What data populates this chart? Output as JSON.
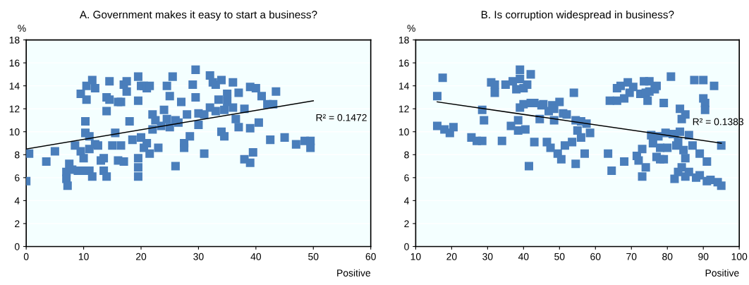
{
  "chart_data": [
    {
      "type": "scatter",
      "title": "A. Government makes it easy to start a business?",
      "xlabel": "Positive",
      "ylabel": "%",
      "marker": "square",
      "grid": "y",
      "xlim": [
        0,
        60
      ],
      "xticks": [
        0,
        10,
        20,
        30,
        40,
        50,
        60
      ],
      "ylim": [
        0,
        18
      ],
      "yticks": [
        0,
        2,
        4,
        6,
        8,
        10,
        12,
        14,
        16,
        18
      ],
      "annotations": [
        "R² = 0.1472"
      ],
      "series": [
        {
          "color": "#4a7ebb",
          "x": [
            0,
            0.5,
            3.5,
            5,
            7,
            7,
            7.2,
            7.5,
            8,
            8.5,
            9,
            9.5,
            9.5,
            10,
            10,
            10.3,
            10.3,
            10.5,
            10.5,
            11,
            11,
            11,
            11.5,
            11.5,
            12,
            12,
            12.5,
            13,
            13.5,
            13.5,
            14,
            14,
            14,
            14.5,
            14.5,
            15,
            15.5,
            16,
            16,
            16.5,
            16.5,
            17,
            17,
            17.5,
            17.5,
            18,
            18.5,
            19.5,
            19.5,
            19.5,
            19.5,
            19.5,
            20,
            20,
            20.5,
            20.5,
            21,
            21,
            21.5,
            21.5,
            22,
            22,
            22.5,
            23,
            23.5,
            24,
            24.5,
            24.5,
            25,
            25,
            25.5,
            26,
            26,
            26.5,
            27,
            27.5,
            27.5,
            28,
            28.5,
            29,
            29.5,
            29.5,
            30,
            30,
            31,
            31,
            32,
            32,
            32.5,
            33,
            33,
            33.5,
            34,
            34,
            34.5,
            34.5,
            35,
            35,
            36,
            36,
            36.5,
            37,
            37,
            38,
            38,
            39,
            39,
            39,
            39.5,
            40,
            40.5,
            41,
            42,
            42.5,
            43,
            43.5,
            45,
            47,
            48.5,
            49.5,
            49.5
          ],
          "values": [
            5.7,
            8.1,
            7.4,
            8.3,
            6.5,
            5.9,
            5.3,
            7.2,
            6.7,
            8.8,
            6.6,
            13.3,
            8.3,
            7.7,
            6.6,
            10.9,
            9.9,
            12.8,
            14,
            9.6,
            8.5,
            6.6,
            6.1,
            14.5,
            13.8,
            8.9,
            8.8,
            7.5,
            7.7,
            6.6,
            6.1,
            11.8,
            13,
            14.4,
            12.8,
            8.8,
            9.9,
            7.5,
            12.6,
            12.6,
            8.8,
            7.4,
            14.1,
            13.5,
            14.4,
            10.9,
            9.3,
            14.8,
            6.1,
            6.9,
            7.7,
            12.7,
            14,
            9.5,
            14,
            8.6,
            9,
            13.8,
            8.1,
            14,
            11.5,
            10.2,
            11,
            8.6,
            10.5,
            11.9,
            14,
            11.1,
            13.1,
            10.4,
            14.8,
            7,
            11,
            10.8,
            12.6,
            9,
            8.6,
            11.5,
            9.6,
            14.1,
            15.4,
            13,
            11.6,
            10.6,
            8.1,
            11.5,
            14.9,
            12.1,
            14.3,
            11.8,
            14.1,
            12.8,
            14.5,
            10,
            11.9,
            9.6,
            12.6,
            13.3,
            14.3,
            12.1,
            11.1,
            13.4,
            10.4,
            12,
            7.6,
            7.3,
            13.9,
            10.3,
            8.2,
            13.8,
            10.8,
            13.1,
            12.4,
            9.3,
            12.4,
            13.5,
            9.5,
            8.9,
            9.2,
            9.2,
            8.6
          ]
        },
        {
          "type": "line",
          "color": "#000000",
          "marker": "none",
          "x": [
            0,
            50
          ],
          "values": [
            8.5,
            12.7
          ]
        }
      ]
    },
    {
      "type": "scatter",
      "title": "B. Is corruption widespread in business?",
      "xlabel": "Positive",
      "ylabel": "%",
      "marker": "square",
      "grid": "y",
      "xlim": [
        10,
        100
      ],
      "xticks": [
        10,
        20,
        30,
        40,
        50,
        60,
        70,
        80,
        90,
        100
      ],
      "ylim": [
        0,
        18
      ],
      "yticks": [
        0,
        2,
        4,
        6,
        8,
        10,
        12,
        14,
        16,
        18
      ],
      "annotations": [
        "R² = 0.1383"
      ],
      "series": [
        {
          "color": "#4a7ebb",
          "x": [
            16,
            16,
            17.5,
            18,
            19.5,
            20.5,
            25.5,
            27,
            28.5,
            28.5,
            29,
            31,
            32,
            32,
            34,
            35,
            36.5,
            37,
            38,
            38.5,
            38.5,
            39,
            39,
            39,
            40,
            40,
            40.5,
            41.5,
            41,
            42,
            42,
            43,
            43,
            44.5,
            45,
            45.5,
            46.5,
            47,
            47.5,
            48,
            48.5,
            48.5,
            49.5,
            50,
            50.5,
            51,
            51.5,
            52,
            53.5,
            54,
            54.5,
            54.5,
            55,
            56,
            56,
            57,
            57.5,
            58.5,
            63.5,
            64,
            64.5,
            66,
            66,
            67,
            68,
            68,
            69,
            69.5,
            70.5,
            71.5,
            72,
            72.5,
            73,
            73,
            73.5,
            74,
            74,
            74.5,
            75,
            75,
            75.5,
            76,
            76.5,
            77,
            77,
            77.5,
            78,
            78,
            79,
            79,
            79.5,
            80,
            81,
            81.5,
            82,
            82,
            82.5,
            83,
            83,
            83.5,
            83.5,
            84,
            84,
            84.5,
            85,
            85,
            85,
            86,
            86,
            87,
            87.5,
            88,
            89,
            89,
            90,
            90,
            90.5,
            90.5,
            91,
            91,
            92,
            93,
            94,
            95,
            95
          ],
          "values": [
            10.5,
            13.1,
            14.7,
            10.2,
            9.9,
            10.4,
            9.5,
            9.2,
            9.2,
            11.9,
            11,
            14.3,
            14.1,
            13.4,
            9.2,
            14.1,
            10.5,
            14.4,
            13.7,
            11,
            10.1,
            15.4,
            12.1,
            14.6,
            13.8,
            12.4,
            10.2,
            7,
            14.1,
            15,
            12.5,
            9.1,
            12.5,
            11.1,
            12.3,
            12.4,
            9.1,
            11.8,
            8.6,
            12.3,
            12,
            11,
            8.1,
            12.6,
            7.6,
            11.6,
            8.8,
            11.5,
            9.1,
            13.4,
            11,
            7.2,
            10.1,
            10.9,
            9.5,
            8.1,
            10.7,
            9.9,
            8.1,
            12.7,
            6.6,
            13.8,
            12.7,
            14,
            7.4,
            12.9,
            14.3,
            13.4,
            13.9,
            7.9,
            7.5,
            13.3,
            8.5,
            6.1,
            14.4,
            13.4,
            6.9,
            12.7,
            14.4,
            13.5,
            9.7,
            9,
            13.7,
            7.8,
            14,
            9.6,
            7.6,
            8.6,
            12.5,
            7.6,
            9.9,
            8.6,
            14.8,
            9.8,
            5.9,
            9.8,
            8.8,
            9.1,
            6.5,
            12,
            10,
            11.1,
            6.9,
            8.4,
            11.5,
            7.7,
            6.1,
            6.5,
            9.7,
            8.8,
            14.5,
            6,
            8.1,
            6.2,
            14.5,
            12.9,
            12.5,
            11.9,
            5.7,
            7.4,
            5.8,
            14,
            5.6,
            5.3,
            8.8
          ]
        },
        {
          "type": "line",
          "color": "#000000",
          "marker": "none",
          "x": [
            16,
            95
          ],
          "values": [
            12.6,
            9.0
          ]
        }
      ]
    }
  ]
}
